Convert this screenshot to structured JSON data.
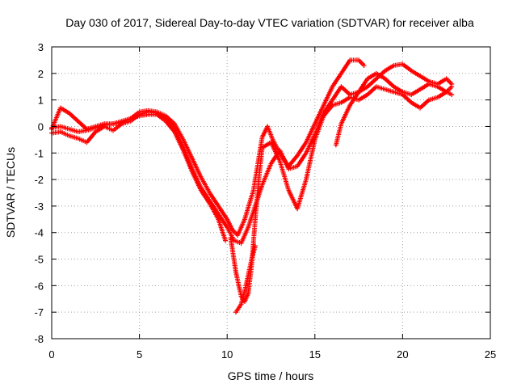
{
  "chart_data": {
    "type": "scatter",
    "title": "Day 030 of 2017, Sidereal Day-to-day VTEC variation (SDTVAR) for receiver alba",
    "xlabel": "GPS time / hours",
    "ylabel": "SDTVAR / TECUs",
    "xlim": [
      0,
      25
    ],
    "ylim": [
      -8,
      3
    ],
    "x_ticks": [
      "0",
      "5",
      "10",
      "15",
      "20",
      "25"
    ],
    "y_ticks": [
      "3",
      "2",
      "1",
      "0",
      "-1",
      "-2",
      "-3",
      "-4",
      "-5",
      "-6",
      "-7",
      "-8"
    ],
    "grid": true,
    "marker": "plus",
    "color": "#ff0000",
    "series": [
      {
        "x": [
          0.0,
          0.5,
          1.0,
          1.5,
          2.0,
          2.5,
          3.0,
          3.5,
          4.0,
          4.5,
          5.0,
          5.5,
          6.0,
          6.5,
          7.0,
          7.5,
          8.0,
          8.5,
          9.0,
          9.5,
          10.0,
          10.3,
          10.6,
          11.0,
          11.5,
          12.0,
          12.3,
          12.6,
          13.0,
          13.5,
          14.0,
          14.5,
          15.0,
          15.5,
          16.0,
          16.5,
          17.0,
          17.5,
          17.8
        ],
        "y": [
          -0.1,
          0.7,
          0.5,
          0.2,
          -0.1,
          0.0,
          0.1,
          0.1,
          0.2,
          0.3,
          0.55,
          0.6,
          0.55,
          0.4,
          0.1,
          -0.5,
          -1.2,
          -1.9,
          -2.5,
          -3.0,
          -3.5,
          -3.9,
          -4.1,
          -3.5,
          -2.4,
          -0.4,
          0.0,
          -0.5,
          -1.0,
          -1.5,
          -1.1,
          -0.6,
          0.1,
          0.8,
          1.5,
          2.0,
          2.5,
          2.5,
          2.3
        ]
      },
      {
        "x": [
          0.0,
          0.5,
          1.0,
          1.5,
          2.0,
          2.5,
          3.0,
          3.5,
          4.0,
          4.5,
          5.0,
          5.5,
          6.0,
          6.5,
          7.0,
          7.5,
          8.0,
          8.5,
          9.0,
          9.5,
          10.0,
          10.4,
          10.8,
          11.2,
          11.6,
          12.0,
          12.5,
          13.0,
          13.5,
          14.0,
          14.5,
          15.0,
          15.5,
          16.0,
          16.5,
          17.0,
          17.5,
          18.0,
          18.5,
          19.0,
          19.5,
          20.0,
          20.5,
          21.0,
          21.5,
          22.0,
          22.5,
          22.8
        ],
        "y": [
          -0.25,
          -0.2,
          -0.35,
          -0.45,
          -0.6,
          -0.2,
          0.0,
          -0.15,
          0.1,
          0.2,
          0.45,
          0.55,
          0.5,
          0.3,
          -0.1,
          -0.8,
          -1.6,
          -2.3,
          -2.8,
          -3.3,
          -3.8,
          -4.3,
          -4.4,
          -3.8,
          -3.0,
          -2.2,
          -1.4,
          -0.9,
          -1.6,
          -1.5,
          -1.0,
          -0.3,
          0.5,
          1.0,
          1.5,
          1.2,
          1.3,
          1.8,
          2.0,
          1.8,
          1.5,
          1.3,
          1.2,
          1.4,
          1.6,
          1.5,
          1.3,
          1.2
        ]
      },
      {
        "x": [
          0.0,
          0.5,
          1.0,
          1.5,
          2.0,
          2.5,
          3.0,
          3.5,
          4.0,
          4.5,
          5.0,
          5.5,
          6.0,
          6.5,
          7.0,
          7.5,
          8.0,
          8.5,
          9.0,
          9.5,
          9.9
        ],
        "y": [
          -0.05,
          0.0,
          -0.1,
          -0.2,
          -0.15,
          -0.05,
          0.05,
          0.1,
          0.15,
          0.3,
          0.4,
          0.45,
          0.45,
          0.2,
          -0.2,
          -0.9,
          -1.7,
          -2.4,
          -2.9,
          -3.5,
          -4.3
        ]
      },
      {
        "x": [
          10.2,
          10.5,
          10.8,
          11.0,
          11.2,
          11.4,
          11.6,
          11.8,
          12.0,
          12.5,
          13.0,
          13.5,
          14.0,
          14.5,
          15.0,
          15.5,
          16.0,
          16.5,
          17.0,
          17.5,
          18.0,
          18.5,
          19.0,
          19.5,
          20.0,
          20.5,
          21.0,
          21.5,
          22.0,
          22.5,
          22.8
        ],
        "y": [
          -4.2,
          -5.5,
          -6.4,
          -6.6,
          -6.3,
          -5.2,
          -3.5,
          -2.0,
          -0.8,
          -0.6,
          -1.3,
          -2.4,
          -3.1,
          -2.0,
          -0.5,
          0.4,
          0.8,
          0.9,
          1.1,
          1.0,
          1.2,
          1.5,
          1.4,
          1.3,
          1.2,
          0.9,
          0.7,
          1.0,
          1.1,
          1.3,
          1.5
        ]
      },
      {
        "x": [
          10.5,
          10.8,
          11.0,
          11.2,
          11.4,
          11.6
        ],
        "y": [
          -7.0,
          -6.7,
          -6.2,
          -5.6,
          -5.0,
          -4.5
        ]
      },
      {
        "x": [
          16.2,
          16.5,
          17.0,
          17.5,
          18.0,
          18.5,
          19.0,
          19.5,
          20.0,
          20.5,
          21.0,
          21.5,
          22.0,
          22.5,
          22.8
        ],
        "y": [
          -0.7,
          0.1,
          0.8,
          1.3,
          1.5,
          1.8,
          2.1,
          2.3,
          2.35,
          2.1,
          1.9,
          1.7,
          1.6,
          1.8,
          1.6
        ]
      }
    ]
  }
}
